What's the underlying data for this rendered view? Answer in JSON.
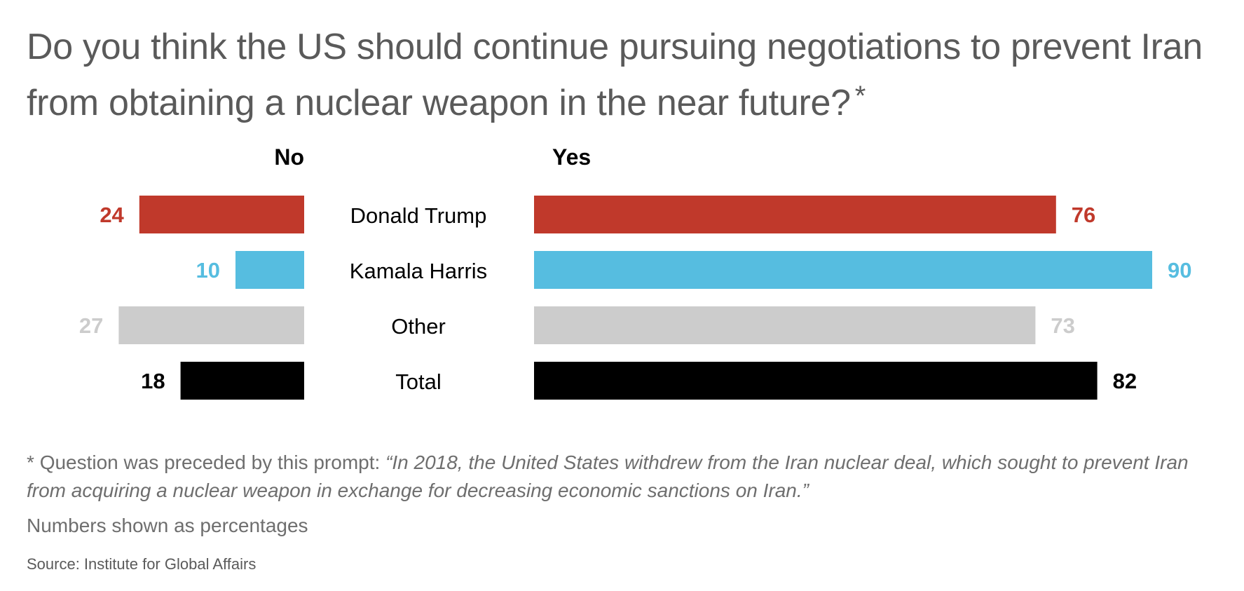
{
  "title": "Do you think the US should continue pursuing negotiations to prevent Iran from obtaining a nuclear weapon in the near future?",
  "title_marker": "*",
  "footnote": {
    "marker": "*",
    "lead": "Question was preceded by this prompt:",
    "prompt": "“In 2018, the United States withdrew from the Iran nuclear deal, which sought to prevent Iran from acquiring a nuclear weapon in exchange for decreasing economic sanctions on Iran.”"
  },
  "units_note": "Numbers shown as percentages",
  "source": "Source: Institute for Global Affairs",
  "chart_data": {
    "type": "bar",
    "orientation": "horizontal-diverging",
    "unit": "percent",
    "xlim": [
      0,
      100
    ],
    "grid": false,
    "legend": "none",
    "no_label": "No",
    "yes_label": "Yes",
    "categories": [
      "Donald Trump",
      "Kamala Harris",
      "Other",
      "Total"
    ],
    "colors": [
      "#c0392b",
      "#56bde0",
      "#cccccc",
      "#000000"
    ],
    "series": [
      {
        "name": "No",
        "values": [
          24,
          10,
          27,
          18
        ]
      },
      {
        "name": "Yes",
        "values": [
          76,
          90,
          73,
          82
        ]
      }
    ]
  }
}
